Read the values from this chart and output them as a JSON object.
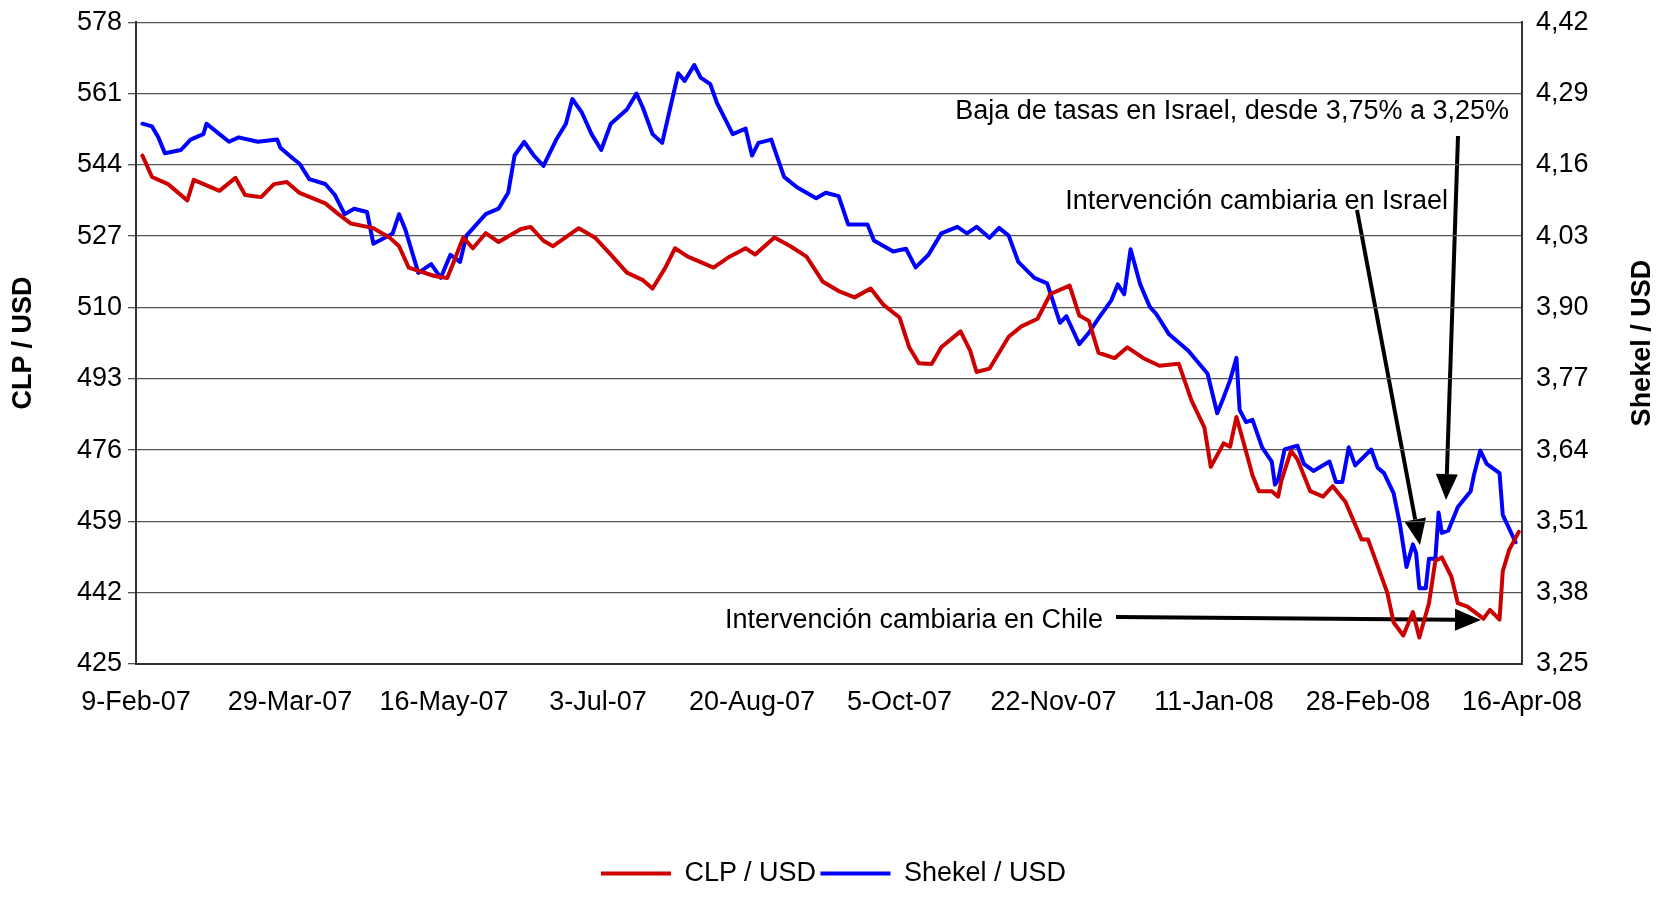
{
  "chart_data": {
    "type": "line",
    "ylabel": "CLP / USD",
    "y2label": "Shekel / USD",
    "xlim": [
      "2007-02-09",
      "2008-04-16"
    ],
    "xticks": [
      {
        "value": "2007-02-09",
        "label": "9-Feb-07"
      },
      {
        "value": "2007-03-29",
        "label": "29-Mar-07"
      },
      {
        "value": "2007-05-16",
        "label": "16-May-07"
      },
      {
        "value": "2007-07-03",
        "label": "3-Jul-07"
      },
      {
        "value": "2007-08-20",
        "label": "20-Aug-07"
      },
      {
        "value": "2007-10-05",
        "label": "5-Oct-07"
      },
      {
        "value": "2007-11-22",
        "label": "22-Nov-07"
      },
      {
        "value": "2008-01-11",
        "label": "11-Jan-08"
      },
      {
        "value": "2008-02-28",
        "label": "28-Feb-08"
      },
      {
        "value": "2008-04-16",
        "label": "16-Apr-08"
      }
    ],
    "ylim": [
      425,
      578
    ],
    "yticks": [
      425,
      442,
      459,
      476,
      493,
      510,
      527,
      544,
      561,
      578
    ],
    "y2lim": [
      3.25,
      4.42
    ],
    "y2ticks": [
      {
        "value": 3.25,
        "label": "3,25"
      },
      {
        "value": 3.38,
        "label": "3,38"
      },
      {
        "value": 3.51,
        "label": "3,51"
      },
      {
        "value": 3.64,
        "label": "3,64"
      },
      {
        "value": 3.77,
        "label": "3,77"
      },
      {
        "value": 3.9,
        "label": "3,90"
      },
      {
        "value": 4.03,
        "label": "4,03"
      },
      {
        "value": 4.16,
        "label": "4,16"
      },
      {
        "value": 4.29,
        "label": "4,29"
      },
      {
        "value": 4.42,
        "label": "4,42"
      }
    ],
    "grid": "y",
    "legend": "bottom",
    "series": [
      {
        "name": "CLP / USD",
        "color": "#cc0000",
        "x": [
          "2007-02-11",
          "2007-02-14",
          "2007-02-19",
          "2007-02-25",
          "2007-02-27",
          "2007-03-07",
          "2007-03-12",
          "2007-03-15",
          "2007-03-20",
          "2007-03-24",
          "2007-03-28",
          "2007-04-01",
          "2007-04-09",
          "2007-04-13",
          "2007-04-17",
          "2007-04-24",
          "2007-04-29",
          "2007-05-02",
          "2007-05-05",
          "2007-05-13",
          "2007-05-17",
          "2007-05-19",
          "2007-05-22",
          "2007-05-25",
          "2007-05-29",
          "2007-06-02",
          "2007-06-09",
          "2007-06-12",
          "2007-06-16",
          "2007-06-19",
          "2007-06-27",
          "2007-07-02",
          "2007-07-07",
          "2007-07-12",
          "2007-07-17",
          "2007-07-20",
          "2007-07-24",
          "2007-07-27",
          "2007-07-31",
          "2007-08-08",
          "2007-08-13",
          "2007-08-18",
          "2007-08-21",
          "2007-08-27",
          "2007-09-01",
          "2007-09-06",
          "2007-09-11",
          "2007-09-16",
          "2007-09-21",
          "2007-09-26",
          "2007-09-30",
          "2007-10-05",
          "2007-10-08",
          "2007-10-11",
          "2007-10-15",
          "2007-10-18",
          "2007-10-24",
          "2007-10-27",
          "2007-10-29",
          "2007-11-02",
          "2007-11-05",
          "2007-11-08",
          "2007-11-12",
          "2007-11-17",
          "2007-11-21",
          "2007-11-27",
          "2007-11-30",
          "2007-12-03",
          "2007-12-06",
          "2007-12-11",
          "2007-12-15",
          "2007-12-20",
          "2007-12-25",
          "2007-12-31",
          "2008-01-04",
          "2008-01-08",
          "2008-01-10",
          "2008-01-14",
          "2008-01-16",
          "2008-01-18",
          "2008-01-20",
          "2008-01-23",
          "2008-01-25",
          "2008-01-29",
          "2008-01-31",
          "2008-02-01",
          "2008-02-04",
          "2008-02-06",
          "2008-02-10",
          "2008-02-14",
          "2008-02-17",
          "2008-02-21",
          "2008-02-26",
          "2008-02-28",
          "2008-03-02",
          "2008-03-05",
          "2008-03-07",
          "2008-03-10",
          "2008-03-13",
          "2008-03-15",
          "2008-03-18",
          "2008-03-20",
          "2008-03-22",
          "2008-03-25",
          "2008-03-27",
          "2008-03-30",
          "2008-04-04",
          "2008-04-06",
          "2008-04-09",
          "2008-04-10",
          "2008-04-12",
          "2008-04-15"
        ],
        "values": [
          546.2,
          541.1,
          539.4,
          535.5,
          540.4,
          537.8,
          540.9,
          536.8,
          536.3,
          539.4,
          539.9,
          537.3,
          534.8,
          532.3,
          530,
          528.9,
          526.7,
          524.6,
          519.5,
          517.5,
          517,
          520.8,
          526.7,
          524.1,
          527.7,
          525.6,
          528.7,
          529.2,
          525.9,
          524.6,
          528.9,
          526.7,
          522.6,
          518.3,
          516.5,
          514.5,
          519.5,
          524.1,
          522.1,
          519.5,
          522.1,
          524.1,
          522.6,
          526.7,
          524.6,
          522.1,
          516.2,
          513.9,
          512.4,
          514.5,
          510.6,
          507.6,
          500.5,
          496.7,
          496.5,
          500.5,
          504.3,
          499.7,
          494.6,
          495.4,
          499.2,
          503,
          505.5,
          507.3,
          513.2,
          515.2,
          508.1,
          506.8,
          499.2,
          497.9,
          500.5,
          497.9,
          496.1,
          496.6,
          487.8,
          481.4,
          472,
          477.6,
          476.8,
          483.9,
          478.4,
          470,
          466.2,
          466.2,
          464.9,
          468.7,
          475.8,
          473.8,
          466.2,
          464.9,
          467.4,
          463.6,
          454.7,
          454.7,
          448.4,
          442,
          434.9,
          431.8,
          437.4,
          431.3,
          439.5,
          449.6,
          450.4,
          445.8,
          439.5,
          438.7,
          435.8,
          437.9,
          435.6,
          447.1,
          452.2,
          456.5
        ]
      },
      {
        "name": "Shekel / USD",
        "color": "#0000ff",
        "axis": "y2",
        "x": [
          "2007-02-11",
          "2007-02-14",
          "2007-02-16",
          "2007-02-18",
          "2007-02-23",
          "2007-02-26",
          "2007-03-02",
          "2007-03-03",
          "2007-03-07",
          "2007-03-10",
          "2007-03-13",
          "2007-03-19",
          "2007-03-25",
          "2007-03-26",
          "2007-03-30",
          "2007-04-01",
          "2007-04-04",
          "2007-04-09",
          "2007-04-12",
          "2007-04-15",
          "2007-04-18",
          "2007-04-22",
          "2007-04-24",
          "2007-04-30",
          "2007-05-02",
          "2007-05-04",
          "2007-05-08",
          "2007-05-12",
          "2007-05-15",
          "2007-05-18",
          "2007-05-21",
          "2007-05-23",
          "2007-05-29",
          "2007-06-02",
          "2007-06-05",
          "2007-06-07",
          "2007-06-10",
          "2007-06-13",
          "2007-06-16",
          "2007-06-20",
          "2007-06-23",
          "2007-06-25",
          "2007-06-28",
          "2007-07-01",
          "2007-07-04",
          "2007-07-07",
          "2007-07-12",
          "2007-07-15",
          "2007-07-17",
          "2007-07-20",
          "2007-07-23",
          "2007-07-28",
          "2007-07-30",
          "2007-08-02",
          "2007-08-04",
          "2007-08-07",
          "2007-08-09",
          "2007-08-14",
          "2007-08-18",
          "2007-08-20",
          "2007-08-22",
          "2007-08-26",
          "2007-08-30",
          "2007-09-03",
          "2007-09-09",
          "2007-09-12",
          "2007-09-16",
          "2007-09-19",
          "2007-09-25",
          "2007-09-27",
          "2007-10-03",
          "2007-10-07",
          "2007-10-10",
          "2007-10-14",
          "2007-10-18",
          "2007-10-23",
          "2007-10-26",
          "2007-10-29",
          "2007-11-02",
          "2007-11-05",
          "2007-11-08",
          "2007-11-11",
          "2007-11-16",
          "2007-11-20",
          "2007-11-24",
          "2007-11-26",
          "2007-11-30",
          "2007-12-03",
          "2007-12-06",
          "2007-12-10",
          "2007-12-12",
          "2007-12-14",
          "2007-12-16",
          "2007-12-19",
          "2007-12-22",
          "2007-12-24",
          "2007-12-28",
          "2008-01-03",
          "2008-01-06",
          "2008-01-09",
          "2008-01-12",
          "2008-01-14",
          "2008-01-16",
          "2008-01-18",
          "2008-01-19",
          "2008-01-21",
          "2008-01-23",
          "2008-01-26",
          "2008-01-29",
          "2008-01-30",
          "2008-01-31",
          "2008-02-02",
          "2008-02-06",
          "2008-02-08",
          "2008-02-11",
          "2008-02-16",
          "2008-02-18",
          "2008-02-20",
          "2008-02-22",
          "2008-02-24",
          "2008-02-29",
          "2008-03-02",
          "2008-03-04",
          "2008-03-07",
          "2008-03-09",
          "2008-03-11",
          "2008-03-13",
          "2008-03-14",
          "2008-03-15",
          "2008-03-17",
          "2008-03-18",
          "2008-03-20",
          "2008-03-21",
          "2008-03-22",
          "2008-03-24",
          "2008-03-27",
          "2008-03-31",
          "2008-04-01",
          "2008-04-03",
          "2008-04-05",
          "2008-04-09",
          "2008-04-10",
          "2008-04-14"
        ],
        "values": [
          4.235,
          4.23,
          4.21,
          4.181,
          4.187,
          4.206,
          4.216,
          4.235,
          4.216,
          4.202,
          4.21,
          4.202,
          4.206,
          4.191,
          4.171,
          4.162,
          4.134,
          4.125,
          4.105,
          4.07,
          4.08,
          4.074,
          4.016,
          4.035,
          4.07,
          4.041,
          3.963,
          3.979,
          3.954,
          3.996,
          3.983,
          4.031,
          4.07,
          4.08,
          4.109,
          4.177,
          4.202,
          4.177,
          4.158,
          4.206,
          4.235,
          4.28,
          4.255,
          4.216,
          4.187,
          4.235,
          4.261,
          4.29,
          4.264,
          4.216,
          4.2,
          4.327,
          4.313,
          4.342,
          4.319,
          4.307,
          4.274,
          4.216,
          4.226,
          4.177,
          4.2,
          4.206,
          4.138,
          4.119,
          4.099,
          4.109,
          4.103,
          4.051,
          4.051,
          4.022,
          4.002,
          4.007,
          3.973,
          3.996,
          4.035,
          4.047,
          4.035,
          4.047,
          4.027,
          4.045,
          4.031,
          3.983,
          3.954,
          3.944,
          3.872,
          3.884,
          3.833,
          3.854,
          3.88,
          3.913,
          3.942,
          3.924,
          4.006,
          3.942,
          3.901,
          3.888,
          3.851,
          3.821,
          3.8,
          3.779,
          3.707,
          3.736,
          3.767,
          3.808,
          3.713,
          3.691,
          3.695,
          3.645,
          3.619,
          3.577,
          3.586,
          3.641,
          3.648,
          3.615,
          3.602,
          3.619,
          3.582,
          3.582,
          3.645,
          3.612,
          3.641,
          3.608,
          3.598,
          3.561,
          3.503,
          3.427,
          3.468,
          3.452,
          3.388,
          3.388,
          3.442,
          3.442,
          3.526,
          3.489,
          3.493,
          3.536,
          3.565,
          3.594,
          3.639,
          3.615,
          3.598,
          3.522,
          3.472
        ]
      }
    ],
    "annotations": [
      "Intervención cambiaria en Chile",
      "Intervención cambiaria en Israel",
      "Baja de tasas en Israel, desde 3,75% a 3,25%"
    ]
  }
}
